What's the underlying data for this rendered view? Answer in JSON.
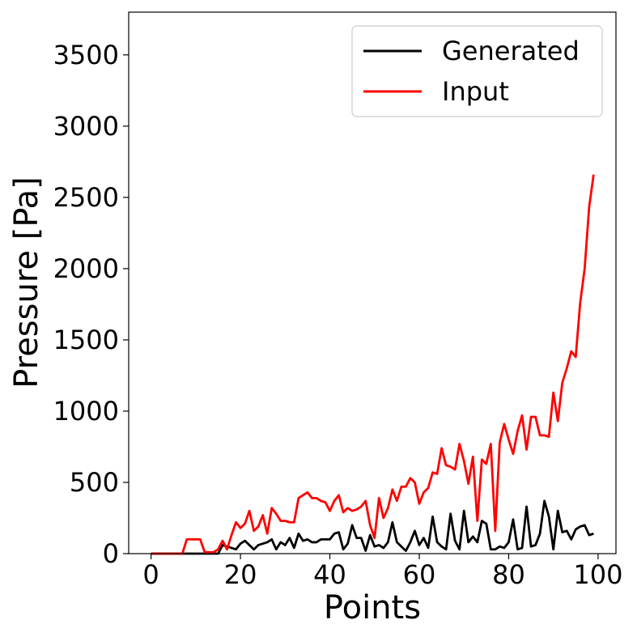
{
  "chart_data": {
    "type": "line",
    "xlabel": "Points",
    "ylabel": "Pressure [Pa]",
    "xlim": [
      -5,
      104
    ],
    "ylim": [
      0,
      3800
    ],
    "x_ticks": [
      0,
      20,
      40,
      60,
      80,
      100
    ],
    "y_ticks": [
      0,
      500,
      1000,
      1500,
      2000,
      2500,
      3000,
      3500
    ],
    "x_tick_labels": [
      "0",
      "20",
      "40",
      "60",
      "80",
      "100"
    ],
    "y_tick_labels": [
      "0",
      "500",
      "1000",
      "1500",
      "2000",
      "2500",
      "3000",
      "3500"
    ],
    "grid": false,
    "legend_position": "top-right",
    "x": [
      0,
      1,
      2,
      3,
      4,
      5,
      6,
      7,
      8,
      9,
      10,
      11,
      12,
      13,
      14,
      15,
      16,
      17,
      18,
      19,
      20,
      21,
      22,
      23,
      24,
      25,
      26,
      27,
      28,
      29,
      30,
      31,
      32,
      33,
      34,
      35,
      36,
      37,
      38,
      39,
      40,
      41,
      42,
      43,
      44,
      45,
      46,
      47,
      48,
      49,
      50,
      51,
      52,
      53,
      54,
      55,
      56,
      57,
      58,
      59,
      60,
      61,
      62,
      63,
      64,
      65,
      66,
      67,
      68,
      69,
      70,
      71,
      72,
      73,
      74,
      75,
      76,
      77,
      78,
      79,
      80,
      81,
      82,
      83,
      84,
      85,
      86,
      87,
      88,
      89,
      90,
      91,
      92,
      93,
      94,
      95,
      96,
      97,
      98,
      99
    ],
    "series": [
      {
        "name": "Generated",
        "color": "#000000",
        "values": [
          0,
          0,
          0,
          0,
          0,
          0,
          0,
          0,
          0,
          0,
          0,
          0,
          0,
          0,
          0,
          0,
          60,
          50,
          40,
          30,
          70,
          90,
          60,
          30,
          60,
          70,
          80,
          100,
          30,
          80,
          60,
          110,
          40,
          140,
          90,
          100,
          80,
          80,
          100,
          100,
          100,
          140,
          150,
          30,
          70,
          200,
          110,
          110,
          20,
          130,
          50,
          60,
          40,
          80,
          220,
          80,
          50,
          20,
          80,
          160,
          60,
          110,
          40,
          260,
          80,
          50,
          30,
          280,
          90,
          30,
          300,
          80,
          120,
          80,
          230,
          210,
          30,
          30,
          50,
          40,
          80,
          240,
          30,
          40,
          330,
          50,
          60,
          140,
          370,
          260,
          30,
          300,
          150,
          160,
          100,
          170,
          190,
          200,
          130,
          140
        ]
      },
      {
        "name": "Input",
        "color": "#ff0000",
        "values": [
          0,
          0,
          0,
          0,
          0,
          0,
          0,
          0,
          100,
          100,
          100,
          100,
          10,
          10,
          10,
          30,
          90,
          30,
          130,
          220,
          180,
          210,
          300,
          160,
          190,
          270,
          140,
          320,
          280,
          230,
          230,
          220,
          220,
          390,
          410,
          430,
          390,
          390,
          370,
          360,
          300,
          370,
          410,
          290,
          320,
          300,
          310,
          330,
          370,
          200,
          110,
          390,
          250,
          320,
          450,
          370,
          470,
          470,
          530,
          500,
          350,
          430,
          460,
          570,
          560,
          740,
          620,
          610,
          590,
          770,
          650,
          490,
          680,
          230,
          660,
          630,
          770,
          160,
          780,
          910,
          800,
          700,
          860,
          970,
          730,
          960,
          960,
          830,
          830,
          820,
          1130,
          930,
          1200,
          1300,
          1420,
          1380,
          1760,
          2000,
          2430,
          2660
        ]
      }
    ]
  }
}
